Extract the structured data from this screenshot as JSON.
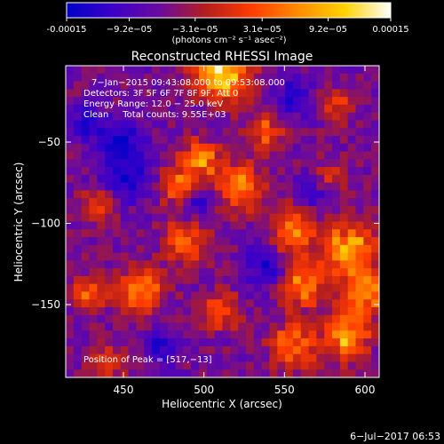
{
  "chart_data": {
    "type": "heatmap",
    "title": "Reconstructed RHESSI Image",
    "xlabel": "Heliocentric X (arcsec)",
    "ylabel": "Heliocentric Y (arcsec)",
    "xlim": [
      413,
      428
    ],
    "ylim": [
      -196,
      -4
    ],
    "x_ticks": [
      450,
      500,
      550,
      600
    ],
    "x_tick_labels": [
      "450",
      "500",
      "550",
      "600"
    ],
    "y_ticks": [
      -50,
      -100,
      -150
    ],
    "y_tick_labels": [
      "−50",
      "−100",
      "−150"
    ],
    "colorbar": {
      "range": [
        -0.00015,
        0.00015
      ],
      "ticks": [
        -0.00015,
        -9.2e-05,
        -3.1e-05,
        3.1e-05,
        9.2e-05,
        0.00015
      ],
      "tick_labels": [
        "-0.00015",
        "−9.2e−05",
        "−3.1e−05",
        "3.1e−05",
        "9.2e−05",
        "0.00015"
      ],
      "unit_label": "(photons cm⁻² s⁻¹ asec⁻²)",
      "colormap": [
        "#0000c8",
        "#3c00c8",
        "#6a0aa0",
        "#b41e1e",
        "#ff3c00",
        "#ff8c00",
        "#ffd200",
        "#ffffff"
      ]
    },
    "annotations": {
      "time_range": "7−Jan−2015 09:43:08.000 to 09:53:08.000",
      "detectors": "Detectors: 3F 5F 6F 7F 8F 9F, Att 0",
      "energy_range": "Energy Range: 12.0 − 25.0 keV",
      "method_counts": "Clean     Total counts: 9.55E+03",
      "peak_position": "Position of Peak = [517,−13]"
    },
    "grid": false,
    "legend": "none",
    "peak": [
      517,
      -13
    ]
  },
  "footer": {
    "timestamp": "6−Jul−2017 06:53"
  }
}
